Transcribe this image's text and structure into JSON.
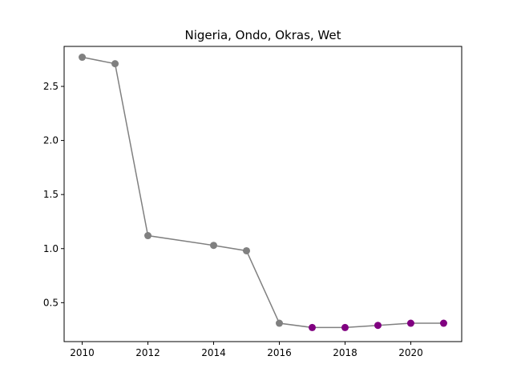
{
  "chart_data": {
    "type": "line",
    "title": "Nigeria, Ondo, Okras, Wet",
    "xlabel": "",
    "ylabel": "",
    "xlim": [
      2009.45,
      2021.55
    ],
    "ylim": [
      0.14,
      2.87
    ],
    "xticks": [
      2010,
      2012,
      2014,
      2016,
      2018,
      2020
    ],
    "yticks": [
      0.5,
      1.0,
      1.5,
      2.0,
      2.5
    ],
    "xtick_labels": [
      "2010",
      "2012",
      "2014",
      "2016",
      "2018",
      "2020"
    ],
    "ytick_labels": [
      "0.5",
      "1.0",
      "1.5",
      "2.0",
      "2.5"
    ],
    "grid": false,
    "line_color": "#808080",
    "series": [
      {
        "points": [
          {
            "x": 2010,
            "y": 2.77,
            "color": "#808080"
          },
          {
            "x": 2011,
            "y": 2.71,
            "color": "#808080"
          },
          {
            "x": 2012,
            "y": 1.12,
            "color": "#808080"
          },
          {
            "x": 2014,
            "y": 1.03,
            "color": "#808080"
          },
          {
            "x": 2015,
            "y": 0.98,
            "color": "#808080"
          },
          {
            "x": 2016,
            "y": 0.31,
            "color": "#808080"
          },
          {
            "x": 2017,
            "y": 0.27,
            "color": "#800080"
          },
          {
            "x": 2018,
            "y": 0.27,
            "color": "#800080"
          },
          {
            "x": 2019,
            "y": 0.29,
            "color": "#800080"
          },
          {
            "x": 2020,
            "y": 0.31,
            "color": "#800080"
          },
          {
            "x": 2021,
            "y": 0.31,
            "color": "#800080"
          }
        ]
      }
    ]
  }
}
